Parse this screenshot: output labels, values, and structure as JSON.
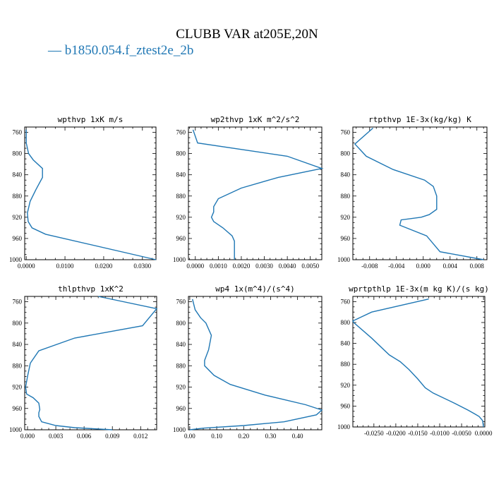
{
  "title": "CLUBB VAR at205E,20N",
  "legend": {
    "label": "— b1850.054.f_ztest2e_2b",
    "color": "#1f77b4"
  },
  "chart_data": [
    {
      "type": "line",
      "title": "wpthvp  1xK m/s",
      "xlim": [
        -0.0004,
        0.0335
      ],
      "ylim": [
        1000,
        750
      ],
      "xticks": [
        0.0,
        0.01,
        0.02,
        0.03
      ],
      "xtick_labels": [
        "0.0000",
        "0.0100",
        "0.0200",
        "0.0300"
      ],
      "yticks": [
        760,
        800,
        840,
        880,
        920,
        960,
        1000
      ],
      "series": [
        {
          "x": [
            0.0,
            0.0,
            0.0006,
            0.0018,
            0.0042,
            0.0042,
            0.0025,
            0.001,
            0.0003,
            0.0005,
            0.0015,
            0.005,
            0.0335
          ],
          "y": [
            755,
            780,
            800,
            812,
            828,
            845,
            868,
            890,
            912,
            928,
            940,
            952,
            1000
          ]
        }
      ]
    },
    {
      "type": "line",
      "title": "wp2thvp  1xK m^2/s^2",
      "xlim": [
        -0.0003,
        0.0055
      ],
      "ylim": [
        1000,
        750
      ],
      "xticks": [
        0.0,
        0.001,
        0.002,
        0.003,
        0.004,
        0.005
      ],
      "xtick_labels": [
        "0.0000",
        "0.0010",
        "0.0020",
        "0.0030",
        "0.0040",
        "0.0050"
      ],
      "yticks": [
        760,
        800,
        840,
        880,
        920,
        960,
        1000
      ],
      "series": [
        {
          "x": [
            -0.0001,
            0.0001,
            0.004,
            0.0055,
            0.0036,
            0.002,
            0.001,
            0.0008,
            0.0008,
            0.0007,
            0.0008,
            0.0012,
            0.0016,
            0.0017,
            0.0017
          ],
          "y": [
            755,
            780,
            805,
            828,
            845,
            865,
            885,
            900,
            910,
            920,
            928,
            940,
            955,
            965,
            1000
          ]
        }
      ]
    },
    {
      "type": "line",
      "title": "rtpthvp  1E-3x(kg/kg) K",
      "xlim": [
        -0.0105,
        0.0095
      ],
      "ylim": [
        1000,
        750
      ],
      "xticks": [
        -0.008,
        -0.004,
        0.0,
        0.004,
        0.008
      ],
      "xtick_labels": [
        "-0.008",
        "-0.004",
        "0.000",
        "0.004",
        "0.008"
      ],
      "yticks": [
        760,
        800,
        840,
        880,
        920,
        960,
        1000
      ],
      "series": [
        {
          "x": [
            -0.0075,
            -0.0102,
            -0.0085,
            -0.0045,
            0.0002,
            0.0015,
            0.002,
            0.002,
            0.0009,
            -0.0003,
            -0.0033,
            -0.0035,
            0.0005,
            0.0015,
            0.0025,
            0.009
          ],
          "y": [
            752,
            782,
            805,
            830,
            850,
            862,
            880,
            905,
            915,
            920,
            925,
            935,
            955,
            970,
            985,
            1000
          ]
        }
      ]
    },
    {
      "type": "line",
      "title": "thlpthvp  1xK^2",
      "xlim": [
        -0.0003,
        0.0137
      ],
      "ylim": [
        1000,
        750
      ],
      "xticks": [
        0.0,
        0.003,
        0.006,
        0.009,
        0.012
      ],
      "xtick_labels": [
        "0.000",
        "0.003",
        "0.006",
        "0.009",
        "0.012"
      ],
      "yticks": [
        760,
        800,
        840,
        880,
        920,
        960,
        1000
      ],
      "series": [
        {
          "x": [
            0.0075,
            0.0137,
            0.0122,
            0.005,
            0.0012,
            0.0003,
            0.0,
            -0.0002,
            -0.0001,
            0.0006,
            0.0012,
            0.0013,
            0.0012,
            0.0012,
            0.0015,
            0.003,
            0.005,
            0.009
          ],
          "y": [
            750,
            773,
            805,
            828,
            852,
            875,
            900,
            920,
            933,
            940,
            950,
            962,
            968,
            975,
            985,
            992,
            996,
            1000
          ]
        }
      ]
    },
    {
      "type": "line",
      "title": "wp4  1x(m^4)/(s^4)",
      "xlim": [
        -0.005,
        0.49
      ],
      "ylim": [
        1000,
        750
      ],
      "xticks": [
        0.0,
        0.1,
        0.2,
        0.3,
        0.4
      ],
      "xtick_labels": [
        "0.00",
        "0.10",
        "0.20",
        "0.30",
        "0.40"
      ],
      "yticks": [
        760,
        800,
        840,
        880,
        920,
        960,
        1000
      ],
      "series": [
        {
          "x": [
            0.01,
            0.02,
            0.04,
            0.06,
            0.08,
            0.07,
            0.055,
            0.055,
            0.09,
            0.15,
            0.28,
            0.43,
            0.49,
            0.47,
            0.35,
            0.2,
            0.05,
            0.0
          ],
          "y": [
            755,
            775,
            790,
            800,
            823,
            850,
            870,
            880,
            898,
            915,
            935,
            953,
            963,
            972,
            985,
            992,
            997,
            1000
          ]
        }
      ]
    },
    {
      "type": "line",
      "title": "wprtpthlp  1E-3x(m kg K)/(s kg)",
      "xlim": [
        -0.0298,
        0.0003
      ],
      "ylim": [
        1000,
        750
      ],
      "xticks": [
        -0.025,
        -0.02,
        -0.015,
        -0.01,
        -0.005,
        0.0
      ],
      "xtick_labels": [
        "-0.0250",
        "-0.0200",
        "-0.0150",
        "-0.0100",
        "-0.0050",
        "0.0000"
      ],
      "yticks": [
        760,
        800,
        840,
        880,
        920,
        960,
        1000
      ],
      "series": [
        {
          "x": [
            -0.0125,
            -0.0255,
            -0.0298,
            -0.0296,
            -0.0255,
            -0.0215,
            -0.019,
            -0.017,
            -0.015,
            -0.0133,
            -0.0115,
            -0.0065,
            -0.0035,
            -0.002,
            -0.001,
            -0.0002,
            0.0
          ],
          "y": [
            755,
            780,
            797,
            800,
            830,
            862,
            875,
            890,
            908,
            925,
            935,
            955,
            968,
            975,
            980,
            988,
            1000
          ]
        }
      ]
    }
  ]
}
